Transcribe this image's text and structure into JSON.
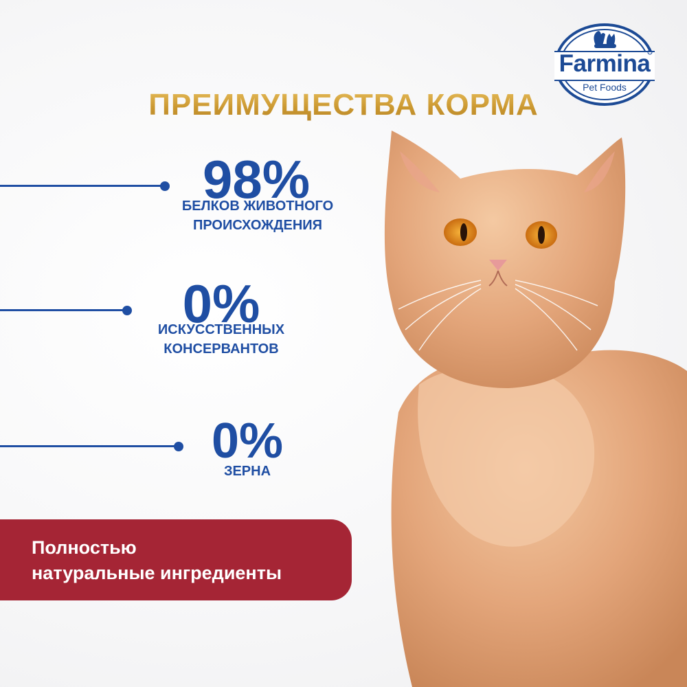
{
  "brand": {
    "name": "Farmina",
    "sub": "Pet Foods",
    "color": "#1c4a95"
  },
  "heading": "ПРЕИМУЩЕСТВА КОРМА",
  "stats": [
    {
      "value": "98%",
      "label_line1": "БЕЛКОВ ЖИВОТНОГО",
      "label_line2": "ПРОИСХОЖДЕНИЯ"
    },
    {
      "value": "0%",
      "label_line1": "ИСКУССТВЕННЫХ",
      "label_line2": "КОНСЕРВАНТОВ"
    },
    {
      "value": "0%",
      "label_line1": "ЗЕРНА",
      "label_line2": ""
    }
  ],
  "banner": {
    "line1": "Полностью",
    "line2": "натуральные ингредиенты",
    "color": "#a52535"
  },
  "colors": {
    "accent_blue": "#1f4ea3",
    "gold": "#c9962e"
  }
}
